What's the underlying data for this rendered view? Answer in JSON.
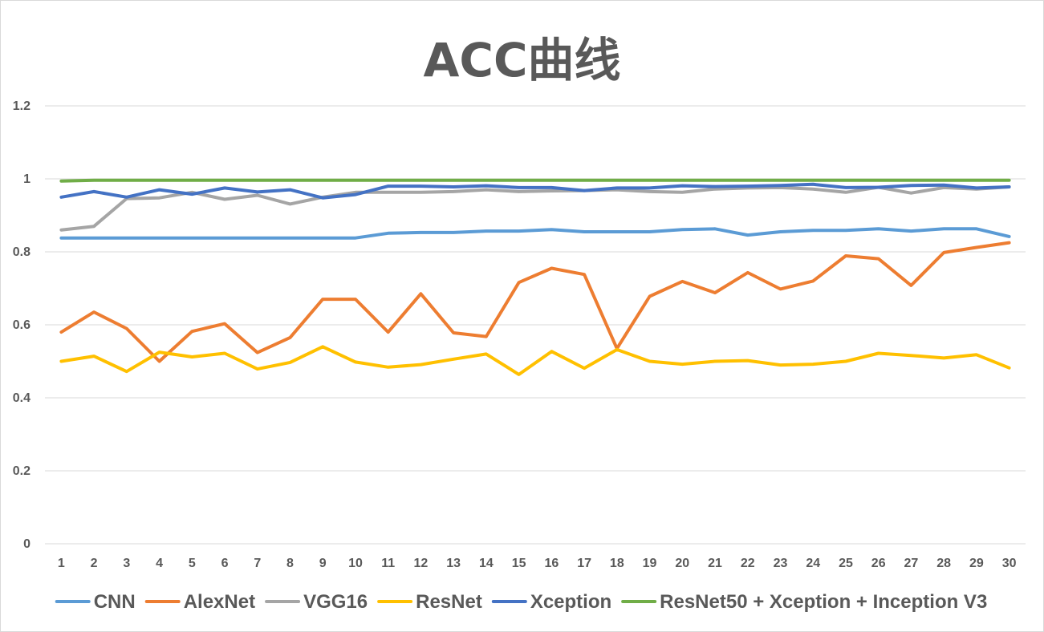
{
  "chart_data": {
    "type": "line",
    "title": "ACC曲线",
    "xlabel": "",
    "ylabel": "",
    "ylim": [
      0,
      1.2
    ],
    "yticks": [
      "0",
      "0.2",
      "0.4",
      "0.6",
      "0.8",
      "1",
      "1.2"
    ],
    "x": [
      1,
      2,
      3,
      4,
      5,
      6,
      7,
      8,
      9,
      10,
      11,
      12,
      13,
      14,
      15,
      16,
      17,
      18,
      19,
      20,
      21,
      22,
      23,
      24,
      25,
      26,
      27,
      28,
      29,
      30
    ],
    "grid": true,
    "legend_position": "bottom",
    "series": [
      {
        "name": "CNN",
        "color": "#5b9bd5",
        "values": [
          0.838,
          0.838,
          0.838,
          0.838,
          0.838,
          0.838,
          0.838,
          0.838,
          0.838,
          0.838,
          0.851,
          0.853,
          0.853,
          0.857,
          0.857,
          0.861,
          0.855,
          0.855,
          0.855,
          0.861,
          0.863,
          0.846,
          0.855,
          0.859,
          0.859,
          0.863,
          0.857,
          0.863,
          0.863,
          0.842
        ]
      },
      {
        "name": "AlexNet",
        "color": "#ed7d31",
        "values": [
          0.58,
          0.635,
          0.59,
          0.5,
          0.582,
          0.603,
          0.524,
          0.565,
          0.67,
          0.67,
          0.58,
          0.685,
          0.578,
          0.568,
          0.716,
          0.755,
          0.738,
          0.535,
          0.678,
          0.719,
          0.688,
          0.743,
          0.698,
          0.72,
          0.789,
          0.781,
          0.708,
          0.798,
          0.812,
          0.825
        ]
      },
      {
        "name": "VGG16",
        "color": "#a5a5a5",
        "values": [
          0.86,
          0.87,
          0.946,
          0.948,
          0.963,
          0.944,
          0.955,
          0.931,
          0.95,
          0.963,
          0.963,
          0.963,
          0.965,
          0.97,
          0.965,
          0.967,
          0.968,
          0.97,
          0.965,
          0.963,
          0.972,
          0.975,
          0.976,
          0.972,
          0.963,
          0.977,
          0.961,
          0.976,
          0.972,
          0.978
        ]
      },
      {
        "name": "ResNet",
        "color": "#ffc000",
        "values": [
          0.5,
          0.514,
          0.472,
          0.525,
          0.512,
          0.522,
          0.479,
          0.497,
          0.54,
          0.498,
          0.484,
          0.491,
          0.506,
          0.52,
          0.464,
          0.527,
          0.481,
          0.532,
          0.5,
          0.492,
          0.5,
          0.502,
          0.49,
          0.492,
          0.5,
          0.522,
          0.516,
          0.509,
          0.518,
          0.482
        ]
      },
      {
        "name": "Xception",
        "color": "#4472c4",
        "values": [
          0.95,
          0.965,
          0.95,
          0.97,
          0.958,
          0.975,
          0.964,
          0.97,
          0.948,
          0.957,
          0.98,
          0.98,
          0.978,
          0.981,
          0.976,
          0.976,
          0.968,
          0.975,
          0.975,
          0.981,
          0.979,
          0.98,
          0.982,
          0.985,
          0.976,
          0.977,
          0.982,
          0.983,
          0.975,
          0.978
        ]
      },
      {
        "name": "ResNet50 + Xception + Inception V3",
        "color": "#70ad47",
        "values": [
          0.994,
          0.996,
          0.996,
          0.996,
          0.996,
          0.996,
          0.996,
          0.996,
          0.996,
          0.996,
          0.996,
          0.996,
          0.996,
          0.996,
          0.996,
          0.996,
          0.996,
          0.996,
          0.996,
          0.996,
          0.996,
          0.996,
          0.996,
          0.996,
          0.996,
          0.996,
          0.996,
          0.996,
          0.996,
          0.996
        ]
      }
    ]
  },
  "colors": {
    "grid": "#d9d9d9",
    "text": "#595959"
  }
}
